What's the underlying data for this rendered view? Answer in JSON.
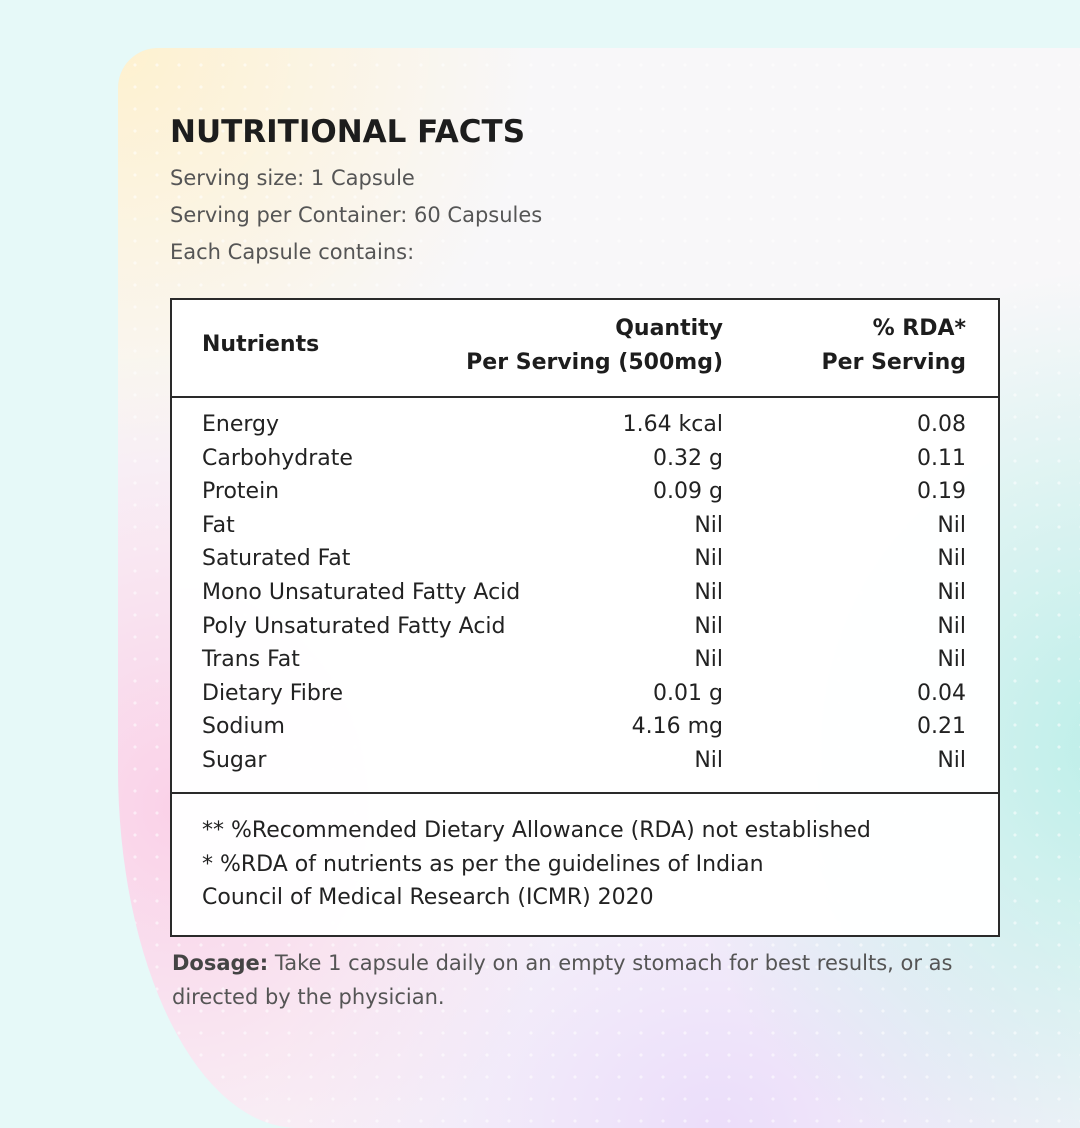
{
  "title": "NUTRITIONAL FACTS",
  "serving_size": "Serving size: 1 Capsule",
  "serving_per_container": "Serving per Container: 60 Capsules",
  "each_capsule": "Each Capsule contains:",
  "table": {
    "headers": {
      "nutrients": "Nutrients",
      "quantity_line1": "Quantity",
      "quantity_line2": "Per Serving (500mg)",
      "rda_line1": "% RDA*",
      "rda_line2": "Per Serving"
    },
    "rows": [
      {
        "nutrient": "Energy",
        "quantity": "1.64 kcal",
        "rda": "0.08"
      },
      {
        "nutrient": "Carbohydrate",
        "quantity": "0.32 g",
        "rda": "0.11"
      },
      {
        "nutrient": "Protein",
        "quantity": "0.09 g",
        "rda": "0.19"
      },
      {
        "nutrient": "Fat",
        "quantity": "Nil",
        "rda": "Nil"
      },
      {
        "nutrient": "Saturated Fat",
        "quantity": "Nil",
        "rda": "Nil"
      },
      {
        "nutrient": "Mono Unsaturated Fatty Acid",
        "quantity": "Nil",
        "rda": "Nil"
      },
      {
        "nutrient": "Poly Unsaturated Fatty Acid",
        "quantity": "Nil",
        "rda": "Nil"
      },
      {
        "nutrient": "Trans Fat",
        "quantity": "Nil",
        "rda": "Nil"
      },
      {
        "nutrient": "Dietary Fibre",
        "quantity": "0.01 g",
        "rda": "0.04"
      },
      {
        "nutrient": "Sodium",
        "quantity": "4.16 mg",
        "rda": "0.21"
      },
      {
        "nutrient": "Sugar",
        "quantity": "Nil",
        "rda": "Nil"
      }
    ],
    "notes": [
      "** %Recommended Dietary Allowance (RDA) not established",
      "* %RDA of nutrients as per the guidelines of Indian",
      "Council of Medical Research (ICMR) 2020"
    ]
  },
  "dosage": {
    "label": "Dosage:",
    "text": " Take 1 capsule daily on an empty stomach for best results, or as directed by the physician."
  }
}
